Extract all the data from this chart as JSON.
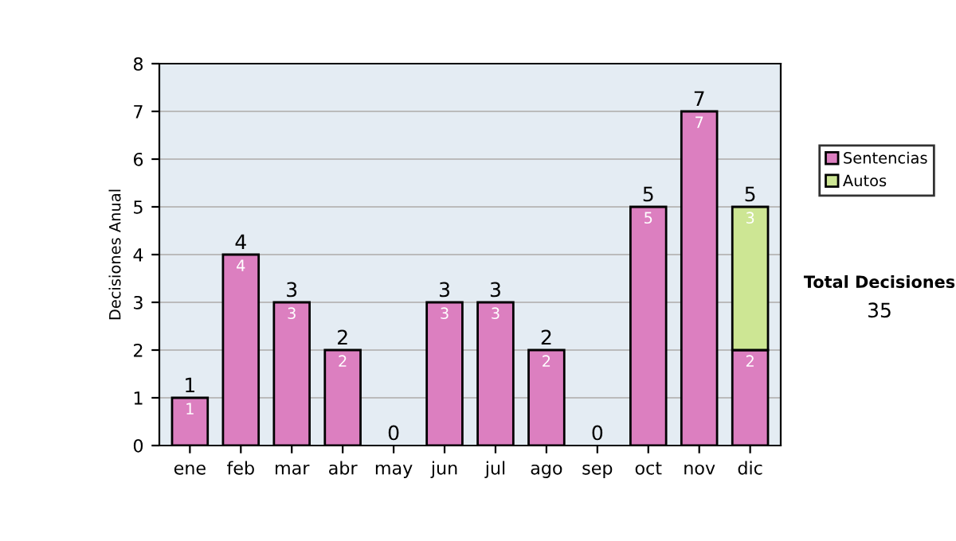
{
  "chart_data": {
    "type": "bar",
    "ylabel": "Decisiones Anual",
    "categories": [
      "ene",
      "feb",
      "mar",
      "abr",
      "may",
      "jun",
      "jul",
      "ago",
      "sep",
      "oct",
      "nov",
      "dic"
    ],
    "series": [
      {
        "name": "Sentencias",
        "color": "#dc7fc0",
        "values": [
          1,
          4,
          3,
          2,
          0,
          3,
          3,
          2,
          0,
          5,
          7,
          2
        ],
        "value_labels": [
          "1",
          "4",
          "3",
          "2",
          null,
          "3",
          "3",
          "2",
          null,
          "5",
          "7",
          "2"
        ]
      },
      {
        "name": "Autos",
        "color": "#cde694",
        "values": [
          null,
          null,
          null,
          null,
          null,
          null,
          null,
          null,
          null,
          null,
          null,
          3
        ],
        "value_labels": [
          null,
          null,
          null,
          null,
          null,
          null,
          null,
          null,
          null,
          null,
          null,
          "3"
        ]
      }
    ],
    "stacked": true,
    "totals": [
      "1",
      "4",
      "3",
      "2",
      "0",
      "3",
      "3",
      "2",
      "0",
      "5",
      "7",
      "5"
    ],
    "ylim": [
      0,
      8
    ],
    "yticks": [
      0,
      1,
      2,
      3,
      4,
      5,
      6,
      7,
      8
    ],
    "grid": "y",
    "legend": "right",
    "annotations": [
      "Total Decisiones",
      "35"
    ]
  }
}
